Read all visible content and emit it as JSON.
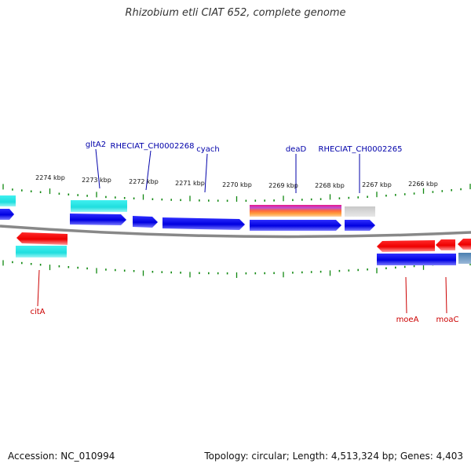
{
  "title": "Rhizobium etli CIAT 652, complete genome",
  "footer": {
    "accession": "Accession: NC_010994",
    "topology": "Topology: circular; Length: 4,513,324 bp; Genes: 4,403"
  },
  "scale_labels": [
    "2274 kbp",
    "2273 kbp",
    "2272 kbp",
    "2271 kbp",
    "2270 kbp",
    "2269 kbp",
    "2268 kbp",
    "2267 kbp",
    "2266 kbp"
  ],
  "gene_labels_top": [
    "gltA2",
    "RHECIAT_CH0002268",
    "cyach",
    "deaD",
    "RHECIAT_CH0002265"
  ],
  "gene_labels_bottom": [
    "citA",
    "moeA",
    "moaC"
  ],
  "colors": {
    "forward_gene": "#0000ee",
    "reverse_gene": "#ee0000",
    "rna_feature": "#22dddd",
    "top_label": "#0000aa",
    "bottom_label": "#cc0000",
    "tick": "#118811",
    "backbone": "#888888"
  }
}
